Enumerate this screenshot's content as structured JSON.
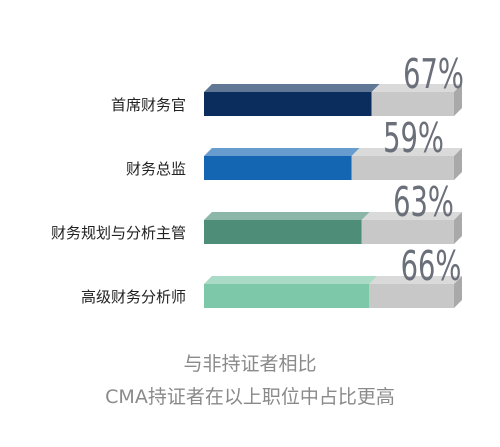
{
  "chart_data": {
    "type": "bar",
    "orientation": "horizontal",
    "categories": [
      "首席财务官",
      "财务总监",
      "财务规划与分析主管",
      "高级财务分析师"
    ],
    "values": [
      67,
      59,
      63,
      66
    ],
    "value_labels": [
      "67%",
      "59%",
      "63%",
      "66%"
    ],
    "xlim": [
      0,
      100
    ],
    "colors": [
      "#0a2d5e",
      "#1466b3",
      "#4e8e78",
      "#7cc8a8"
    ],
    "track_color": "#c8c8c8",
    "label_color": "#6b6f7a",
    "grid": false,
    "legend": "none"
  },
  "captions": {
    "line1": "与非持证者相比",
    "line2": "CMA持证者在以上职位中占比更高"
  }
}
